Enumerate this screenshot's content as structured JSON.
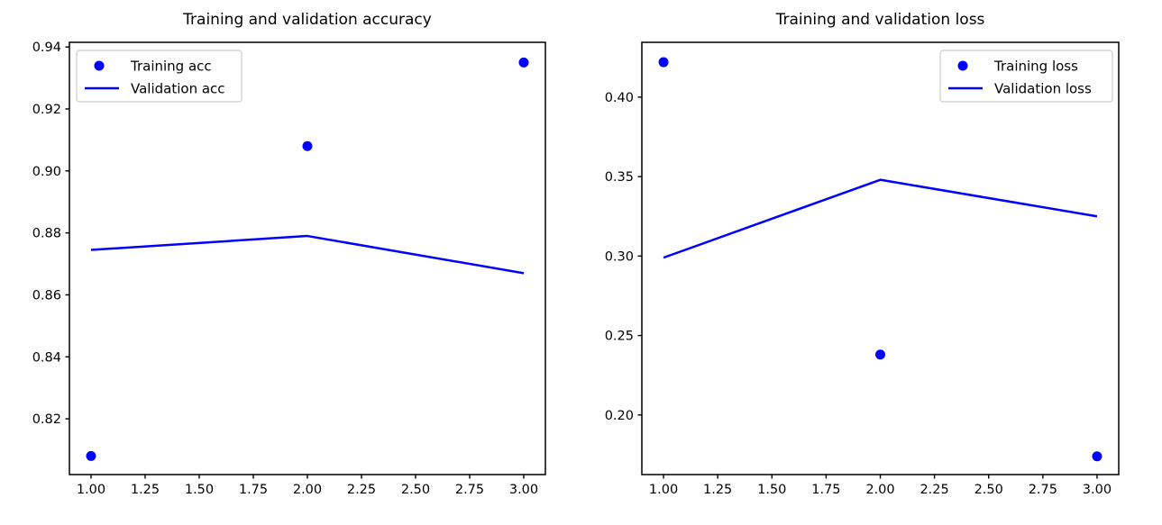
{
  "figure": {
    "background": "#ffffff",
    "series_color": "#0000ff",
    "axis_color": "#000000",
    "legend_border_color": "#cccccc",
    "legend_background": "#ffffff"
  },
  "chart_data": [
    {
      "type": "scatter+line",
      "title": "Training and validation accuracy",
      "x": [
        1,
        2,
        3
      ],
      "series": [
        {
          "name": "Training acc",
          "style": "scatter",
          "values": [
            0.808,
            0.908,
            0.935
          ]
        },
        {
          "name": "Validation acc",
          "style": "line",
          "values": [
            0.8745,
            0.879,
            0.867
          ]
        }
      ],
      "xlim": [
        0.9,
        3.1
      ],
      "ylim": [
        0.802,
        0.9415
      ],
      "xticks": {
        "values": [
          1.0,
          1.25,
          1.5,
          1.75,
          2.0,
          2.25,
          2.5,
          2.75,
          3.0
        ],
        "labels": [
          "1.00",
          "1.25",
          "1.50",
          "1.75",
          "2.00",
          "2.25",
          "2.50",
          "2.75",
          "3.00"
        ]
      },
      "yticks": {
        "values": [
          0.82,
          0.84,
          0.86,
          0.88,
          0.9,
          0.92,
          0.94
        ],
        "labels": [
          "0.82",
          "0.84",
          "0.86",
          "0.88",
          "0.90",
          "0.92",
          "0.94"
        ]
      },
      "grid": false,
      "legend_position": "upper-left"
    },
    {
      "type": "scatter+line",
      "title": "Training and validation loss",
      "x": [
        1,
        2,
        3
      ],
      "series": [
        {
          "name": "Training loss",
          "style": "scatter",
          "values": [
            0.422,
            0.238,
            0.174
          ]
        },
        {
          "name": "Validation loss",
          "style": "line",
          "values": [
            0.299,
            0.348,
            0.325
          ]
        }
      ],
      "xlim": [
        0.9,
        3.1
      ],
      "ylim": [
        0.1625,
        0.4345
      ],
      "xticks": {
        "values": [
          1.0,
          1.25,
          1.5,
          1.75,
          2.0,
          2.25,
          2.5,
          2.75,
          3.0
        ],
        "labels": [
          "1.00",
          "1.25",
          "1.50",
          "1.75",
          "2.00",
          "2.25",
          "2.50",
          "2.75",
          "3.00"
        ]
      },
      "yticks": {
        "values": [
          0.2,
          0.25,
          0.3,
          0.35,
          0.4
        ],
        "labels": [
          "0.20",
          "0.25",
          "0.30",
          "0.35",
          "0.40"
        ]
      },
      "grid": false,
      "legend_position": "upper-right"
    }
  ]
}
